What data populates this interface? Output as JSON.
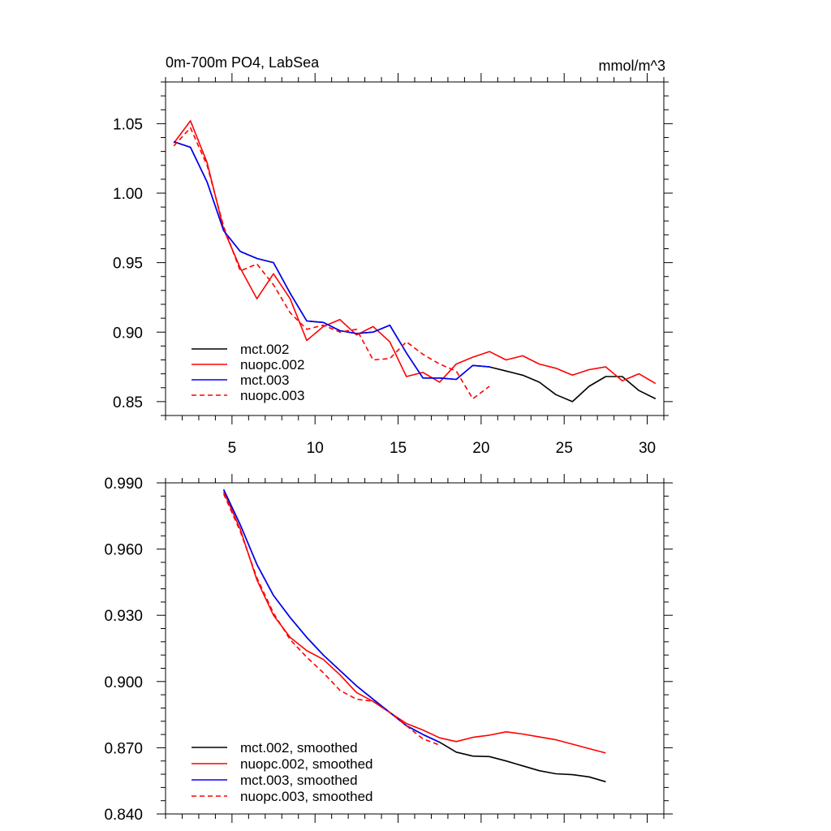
{
  "chart_data": [
    {
      "type": "line",
      "title": "0m-700m PO4, LabSea",
      "units": "mmol/m^3",
      "xlim": [
        1,
        31
      ],
      "ylim": [
        0.84,
        1.08
      ],
      "x_ticks": [
        5,
        10,
        15,
        20,
        25,
        30
      ],
      "x_tick_labels": [
        "5",
        "10",
        "15",
        "20",
        "25",
        "30"
      ],
      "y_ticks": [
        0.85,
        0.9,
        0.95,
        1.0,
        1.05
      ],
      "y_tick_labels": [
        "0.85",
        "0.90",
        "0.95",
        "1.00",
        "1.05"
      ],
      "legend_position": "bottom-left",
      "series": [
        {
          "name": "mct.002",
          "color": "#000000",
          "dash": "solid",
          "x": [
            1.5,
            2.5,
            3.5,
            4.5,
            5.5,
            6.5,
            7.5,
            8.5,
            9.5,
            10.5,
            11.5,
            12.5,
            13.5,
            14.5,
            15.5,
            16.5,
            17.5,
            18.5,
            19.5,
            20.5,
            21.5,
            22.5,
            23.5,
            24.5,
            25.5,
            26.5,
            27.5,
            28.5,
            29.5,
            30.5
          ],
          "y": [
            1.037,
            1.033,
            1.008,
            0.973,
            0.958,
            0.953,
            0.95,
            0.928,
            0.908,
            0.907,
            0.901,
            0.899,
            0.9,
            0.905,
            0.885,
            0.867,
            0.867,
            0.866,
            0.876,
            0.875,
            0.872,
            0.869,
            0.864,
            0.855,
            0.85,
            0.861,
            0.868,
            0.868,
            0.858,
            0.852
          ]
        },
        {
          "name": "nuopc.002",
          "color": "#ff0000",
          "dash": "solid",
          "x": [
            1.5,
            2.5,
            3.5,
            4.5,
            5.5,
            6.5,
            7.5,
            8.5,
            9.5,
            10.5,
            11.5,
            12.5,
            13.5,
            14.5,
            15.5,
            16.5,
            17.5,
            18.5,
            19.5,
            20.5,
            21.5,
            22.5,
            23.5,
            24.5,
            25.5,
            26.5,
            27.5,
            28.5,
            29.5,
            30.5
          ],
          "y": [
            1.036,
            1.052,
            1.022,
            0.974,
            0.946,
            0.924,
            0.942,
            0.924,
            0.894,
            0.904,
            0.909,
            0.898,
            0.904,
            0.893,
            0.868,
            0.871,
            0.864,
            0.877,
            0.882,
            0.886,
            0.88,
            0.883,
            0.877,
            0.874,
            0.869,
            0.873,
            0.875,
            0.865,
            0.87,
            0.863
          ]
        },
        {
          "name": "mct.003",
          "color": "#0000ff",
          "dash": "solid",
          "x": [
            1.5,
            2.5,
            3.5,
            4.5,
            5.5,
            6.5,
            7.5,
            8.5,
            9.5,
            10.5,
            11.5,
            12.5,
            13.5,
            14.5,
            15.5,
            16.5,
            17.5,
            18.5,
            19.5,
            20.5
          ],
          "y": [
            1.037,
            1.033,
            1.008,
            0.973,
            0.958,
            0.953,
            0.95,
            0.928,
            0.908,
            0.907,
            0.901,
            0.899,
            0.9,
            0.905,
            0.885,
            0.867,
            0.867,
            0.866,
            0.876,
            0.875
          ]
        },
        {
          "name": "nuopc.003",
          "color": "#ff0000",
          "dash": "dashed",
          "x": [
            1.5,
            2.5,
            3.5,
            4.5,
            5.5,
            6.5,
            7.5,
            8.5,
            9.5,
            10.5,
            11.5,
            12.5,
            13.5,
            14.5,
            15.5,
            16.5,
            17.5,
            18.5,
            19.5,
            20.5
          ],
          "y": [
            1.034,
            1.047,
            1.02,
            0.976,
            0.944,
            0.949,
            0.934,
            0.914,
            0.902,
            0.905,
            0.9,
            0.902,
            0.88,
            0.881,
            0.893,
            0.884,
            0.877,
            0.872,
            0.852,
            0.861
          ]
        }
      ]
    },
    {
      "type": "line",
      "xlim": [
        1,
        31
      ],
      "ylim": [
        0.84,
        0.99
      ],
      "y_ticks": [
        0.84,
        0.87,
        0.9,
        0.93,
        0.96,
        0.99
      ],
      "y_tick_labels": [
        "0.840",
        "0.870",
        "0.900",
        "0.930",
        "0.960",
        "0.990"
      ],
      "x_ticks": [
        5,
        10,
        15,
        20,
        25,
        30
      ],
      "legend_position": "bottom-left",
      "series": [
        {
          "name": "mct.002, smoothed",
          "color": "#000000",
          "dash": "solid",
          "x": [
            4.5,
            5.5,
            6.5,
            7.5,
            8.5,
            9.5,
            10.5,
            11.5,
            12.5,
            13.5,
            14.5,
            15.5,
            16.5,
            17.5,
            18.5,
            19.5,
            20.5,
            21.5,
            22.5,
            23.5,
            24.5,
            25.5,
            26.5,
            27.5
          ],
          "y": [
            0.987,
            0.971,
            0.953,
            0.939,
            0.929,
            0.92,
            0.912,
            0.905,
            0.898,
            0.892,
            0.886,
            0.88,
            0.876,
            0.8725,
            0.868,
            0.8662,
            0.866,
            0.864,
            0.8618,
            0.8596,
            0.8582,
            0.8578,
            0.8568,
            0.8546
          ]
        },
        {
          "name": "nuopc.002, smoothed",
          "color": "#ff0000",
          "dash": "solid",
          "x": [
            4.5,
            5.5,
            6.5,
            7.5,
            8.5,
            9.5,
            10.5,
            11.5,
            12.5,
            13.5,
            14.5,
            15.5,
            16.5,
            17.5,
            18.5,
            19.5,
            20.5,
            21.5,
            22.5,
            23.5,
            24.5,
            25.5,
            26.5,
            27.5
          ],
          "y": [
            0.986,
            0.969,
            0.946,
            0.93,
            0.92,
            0.914,
            0.91,
            0.903,
            0.895,
            0.891,
            0.886,
            0.881,
            0.878,
            0.8745,
            0.8728,
            0.8747,
            0.8757,
            0.8772,
            0.8762,
            0.8749,
            0.8736,
            0.8716,
            0.8696,
            0.8676
          ]
        },
        {
          "name": "mct.003, smoothed",
          "color": "#0000ff",
          "dash": "solid",
          "x": [
            4.5,
            5.5,
            6.5,
            7.5,
            8.5,
            9.5,
            10.5,
            11.5,
            12.5,
            13.5,
            14.5,
            15.5,
            16.5,
            17.5
          ],
          "y": [
            0.987,
            0.971,
            0.953,
            0.939,
            0.929,
            0.92,
            0.912,
            0.905,
            0.898,
            0.892,
            0.886,
            0.88,
            0.876,
            0.8725
          ]
        },
        {
          "name": "nuopc.003, smoothed",
          "color": "#ff0000",
          "dash": "dashed",
          "x": [
            4.5,
            5.5,
            6.5,
            7.5,
            8.5,
            9.5,
            10.5,
            11.5,
            12.5,
            13.5,
            14.5,
            15.5,
            16.5,
            17.5
          ],
          "y": [
            0.985,
            0.968,
            0.947,
            0.931,
            0.919,
            0.911,
            0.904,
            0.896,
            0.892,
            0.891,
            0.886,
            0.88,
            0.874,
            0.8712
          ]
        }
      ]
    }
  ]
}
